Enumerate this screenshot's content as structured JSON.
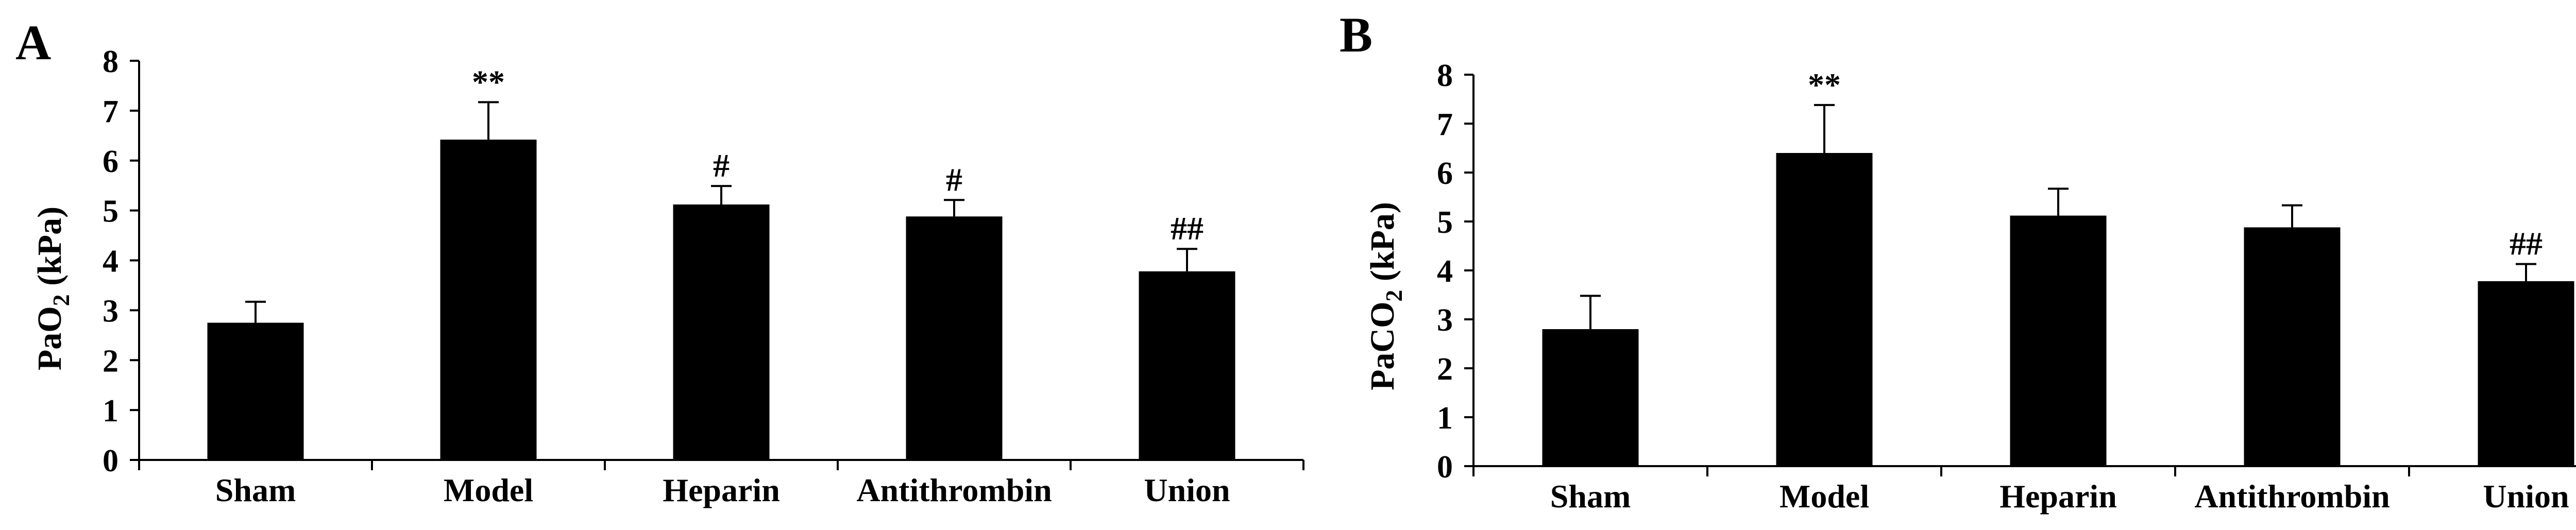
{
  "colors": {
    "bar": "#000000",
    "axis": "#000000",
    "background": "#ffffff"
  },
  "chart_data": [
    {
      "panel_label": "A",
      "type": "bar",
      "title": "",
      "xlabel": "",
      "ylabel_main": "PaO",
      "ylabel_sub": "2",
      "ylabel_unit": " (kPa)",
      "ylim": [
        0,
        8
      ],
      "yticks": [
        "0",
        "1",
        "2",
        "3",
        "4",
        "5",
        "6",
        "7",
        "8"
      ],
      "categories": [
        "Sham",
        "Model",
        "Heparin",
        "Antithrombin",
        "Union"
      ],
      "values": [
        2.75,
        6.42,
        5.12,
        4.88,
        3.78
      ],
      "errors": [
        0.42,
        0.75,
        0.37,
        0.33,
        0.45
      ],
      "annotations": [
        "",
        "**",
        "#",
        "#",
        "##"
      ],
      "grid": false,
      "legend": "none"
    },
    {
      "panel_label": "B",
      "type": "bar",
      "title": "",
      "xlabel": "",
      "ylabel_main": "PaCO",
      "ylabel_sub": "2",
      "ylabel_unit": " (kPa)",
      "ylim": [
        0,
        8
      ],
      "yticks": [
        "0",
        "1",
        "2",
        "3",
        "4",
        "5",
        "6",
        "7",
        "8"
      ],
      "categories": [
        "Sham",
        "Model",
        "Heparin",
        "Antithrombin",
        "Union"
      ],
      "values": [
        2.8,
        6.4,
        5.12,
        4.88,
        3.78
      ],
      "errors": [
        0.68,
        0.98,
        0.55,
        0.45,
        0.35
      ],
      "annotations": [
        "",
        "**",
        "",
        "",
        "##"
      ],
      "grid": false,
      "legend": "none"
    }
  ]
}
